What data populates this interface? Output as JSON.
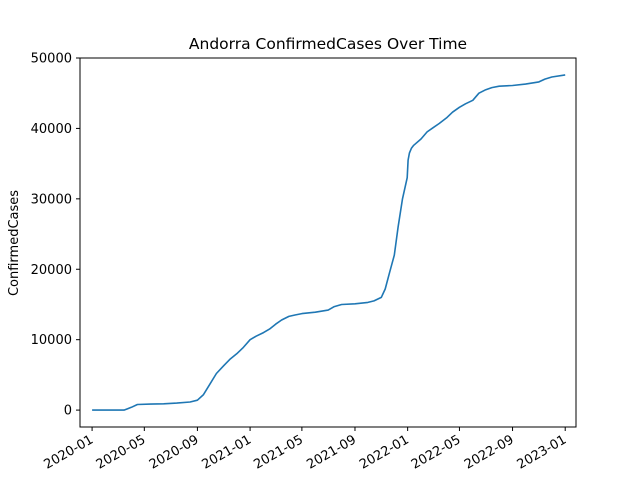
{
  "chart_data": {
    "type": "line",
    "title": "Andorra  ConfirmedCases Over Time",
    "xlabel": "",
    "ylabel": "ConfirmedCases",
    "x_axis_type": "date",
    "xlim": [
      "2019-12-04",
      "2023-01-26"
    ],
    "ylim": [
      -2400,
      50000
    ],
    "grid": false,
    "x_ticks": [
      "2020-01",
      "2020-05",
      "2020-09",
      "2021-01",
      "2021-05",
      "2021-09",
      "2022-01",
      "2022-05",
      "2022-09",
      "2023-01"
    ],
    "y_ticks": [
      0,
      10000,
      20000,
      30000,
      40000,
      50000
    ],
    "line_color": "#1f77b4",
    "series": [
      {
        "x": [
          "2020-01-01",
          "2020-03-01",
          "2020-03-15",
          "2020-04-01",
          "2020-04-15",
          "2020-05-15",
          "2020-06-15",
          "2020-07-15",
          "2020-08-15",
          "2020-09-01",
          "2020-09-15",
          "2020-10-01",
          "2020-10-15",
          "2020-11-01",
          "2020-11-15",
          "2020-12-01",
          "2020-12-15",
          "2021-01-01",
          "2021-01-15",
          "2021-02-01",
          "2021-02-15",
          "2021-03-01",
          "2021-03-15",
          "2021-04-01",
          "2021-04-15",
          "2021-05-01",
          "2021-06-01",
          "2021-07-01",
          "2021-07-15",
          "2021-08-01",
          "2021-09-01",
          "2021-10-01",
          "2021-10-15",
          "2021-11-01",
          "2021-11-10",
          "2021-11-20",
          "2021-12-01",
          "2021-12-10",
          "2021-12-20",
          "2021-12-31",
          "2022-01-02",
          "2022-01-05",
          "2022-01-10",
          "2022-01-15",
          "2022-02-01",
          "2022-02-15",
          "2022-03-01",
          "2022-03-15",
          "2022-04-01",
          "2022-04-15",
          "2022-05-01",
          "2022-05-15",
          "2022-06-01",
          "2022-06-15",
          "2022-07-01",
          "2022-07-15",
          "2022-08-01",
          "2022-09-01",
          "2022-10-01",
          "2022-11-01",
          "2022-11-15",
          "2022-12-01",
          "2023-01-01"
        ],
        "values": [
          0,
          0,
          0,
          400,
          800,
          850,
          900,
          1000,
          1150,
          1400,
          2200,
          3800,
          5200,
          6300,
          7200,
          8000,
          8800,
          10000,
          10500,
          11000,
          11500,
          12200,
          12800,
          13300,
          13500,
          13700,
          13900,
          14200,
          14700,
          15000,
          15100,
          15300,
          15500,
          16000,
          17200,
          19500,
          22000,
          26000,
          30000,
          33000,
          35500,
          36500,
          37200,
          37600,
          38500,
          39500,
          40100,
          40700,
          41500,
          42300,
          43000,
          43500,
          44000,
          45000,
          45500,
          45800,
          46000,
          46100,
          46300,
          46600,
          47000,
          47300,
          47600
        ]
      }
    ]
  }
}
